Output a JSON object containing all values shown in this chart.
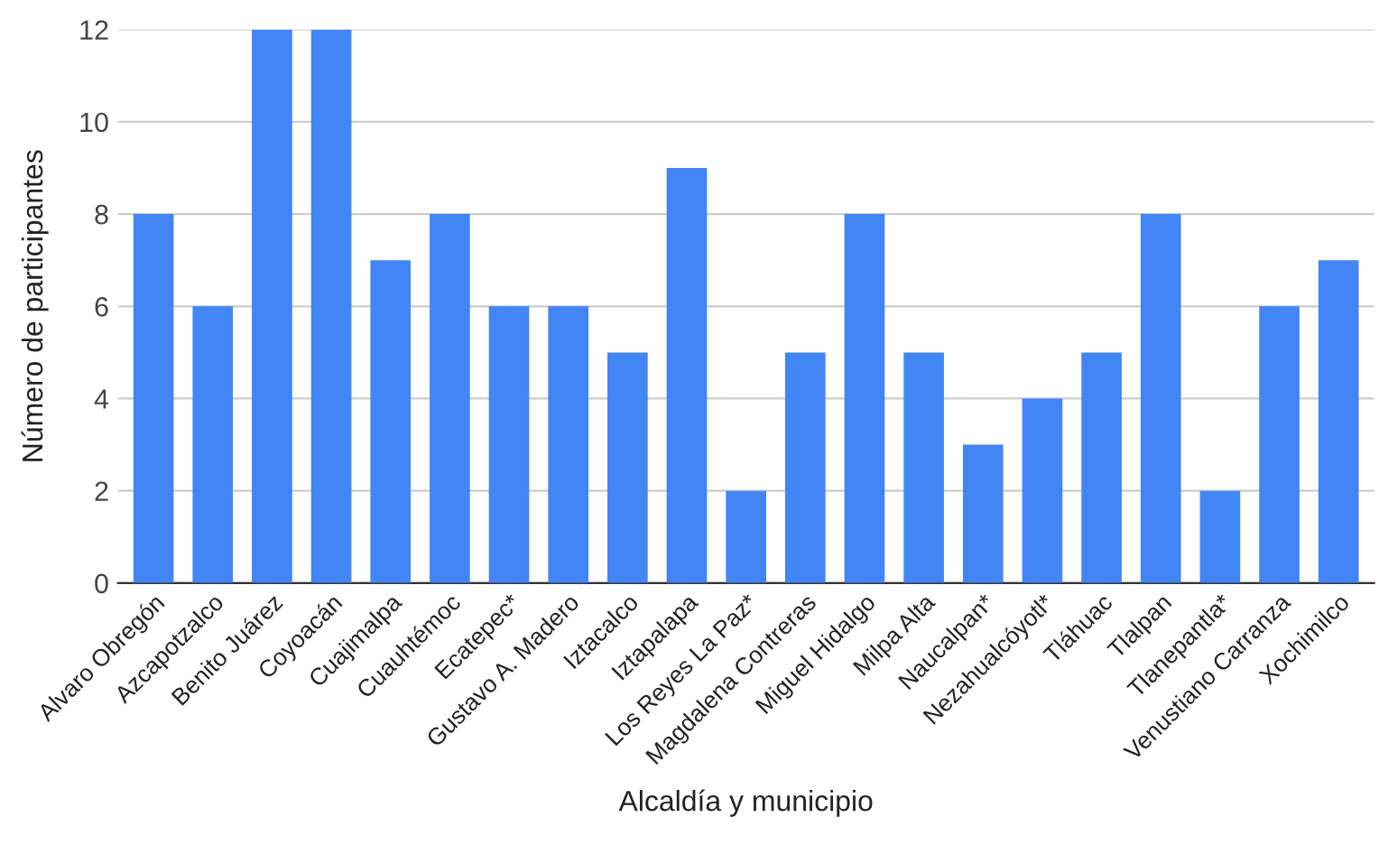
{
  "chart_data": {
    "type": "bar",
    "xlabel": "Alcaldía y municipio",
    "ylabel": "Número de participantes",
    "categories": [
      "Alvaro Obregón",
      "Azcapotzalco",
      "Benito Juárez",
      "Coyoacán",
      "Cuajimalpa",
      "Cuauhtémoc",
      "Ecatepec*",
      "Gustavo A. Madero",
      "Iztacalco",
      "Iztapalapa",
      "Los Reyes La Paz*",
      "Magdalena Contreras",
      "Miguel Hidalgo",
      "Milpa Alta",
      "Naucalpan*",
      "Nezahualcóyotl*",
      "Tláhuac",
      "Tlalpan",
      "Tlanepantla*",
      "Venustiano Carranza",
      "Xochimilco"
    ],
    "values": [
      8,
      6,
      12,
      12,
      7,
      8,
      6,
      6,
      5,
      9,
      2,
      5,
      8,
      5,
      3,
      4,
      5,
      8,
      2,
      6,
      7
    ],
    "color": "#4285f4",
    "ylim": [
      0,
      12
    ],
    "yticks": [
      0,
      2,
      4,
      6,
      8,
      10,
      12
    ],
    "grid": "y"
  }
}
